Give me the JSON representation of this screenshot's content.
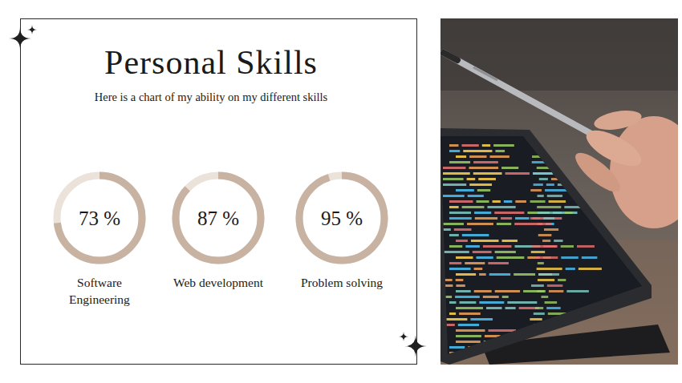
{
  "chart_data": {
    "type": "radial_progress",
    "title": "Personal Skills",
    "subtitle": "Here is a chart of my ability on my different skills",
    "categories": [
      "Software Engineering",
      "Web development",
      "Problem solving"
    ],
    "values": [
      73,
      87,
      95
    ],
    "value_labels": [
      "73 %",
      "87 %",
      "95 %"
    ],
    "ylim": [
      0,
      100
    ],
    "data_labels": true,
    "color": "#c8b2a2"
  }
}
